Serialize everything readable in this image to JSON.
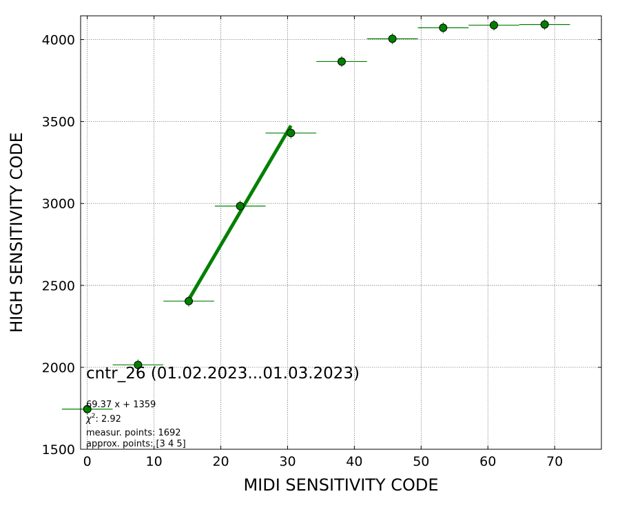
{
  "chart_data": {
    "type": "scatter",
    "title": "cntr_26 (01.02.2023...01.03.2023)",
    "xlabel": "MIDI SENSITIVITY CODE",
    "ylabel": "HIGH SENSITIVITY CODE",
    "xlim": [
      -1,
      77
    ],
    "ylim": [
      1500,
      4145
    ],
    "xticks": [
      0,
      10,
      20,
      30,
      40,
      50,
      60,
      70
    ],
    "yticks": [
      1500,
      2000,
      2500,
      3000,
      3500,
      4000
    ],
    "grid": true,
    "colors": {
      "marker": "#008000",
      "marker_edge": "#000000",
      "errorbar": "#008000",
      "fit_line": "#008000",
      "grid": "#808080"
    },
    "series": [
      {
        "type": "errorbar-scatter",
        "points": [
          {
            "x": 0,
            "y": 1745,
            "xerr": 3.8
          },
          {
            "x": 7.6,
            "y": 2015,
            "xerr": 3.8
          },
          {
            "x": 15.2,
            "y": 2404,
            "xerr": 3.8
          },
          {
            "x": 22.9,
            "y": 2984,
            "xerr": 3.8
          },
          {
            "x": 30.5,
            "y": 3430,
            "xerr": 3.8
          },
          {
            "x": 38.1,
            "y": 3866,
            "xerr": 3.8
          },
          {
            "x": 45.7,
            "y": 4005,
            "xerr": 3.8
          },
          {
            "x": 53.3,
            "y": 4072,
            "xerr": 3.8
          },
          {
            "x": 60.9,
            "y": 4088,
            "xerr": 3.8
          },
          {
            "x": 68.5,
            "y": 4092,
            "xerr": 3.8
          }
        ]
      },
      {
        "type": "fit-line",
        "slope": 69.37,
        "intercept": 1359,
        "x_range": [
          15.2,
          30.5
        ]
      }
    ],
    "annotations": {
      "fit_text": "69.37 x + 1359",
      "chi2_label": "χ",
      "chi2_sup": "2",
      "chi2_value": ": 2.92",
      "measur_text": "measur. points: 1692",
      "approx_text": "approx. points: [3 4 5]"
    }
  }
}
